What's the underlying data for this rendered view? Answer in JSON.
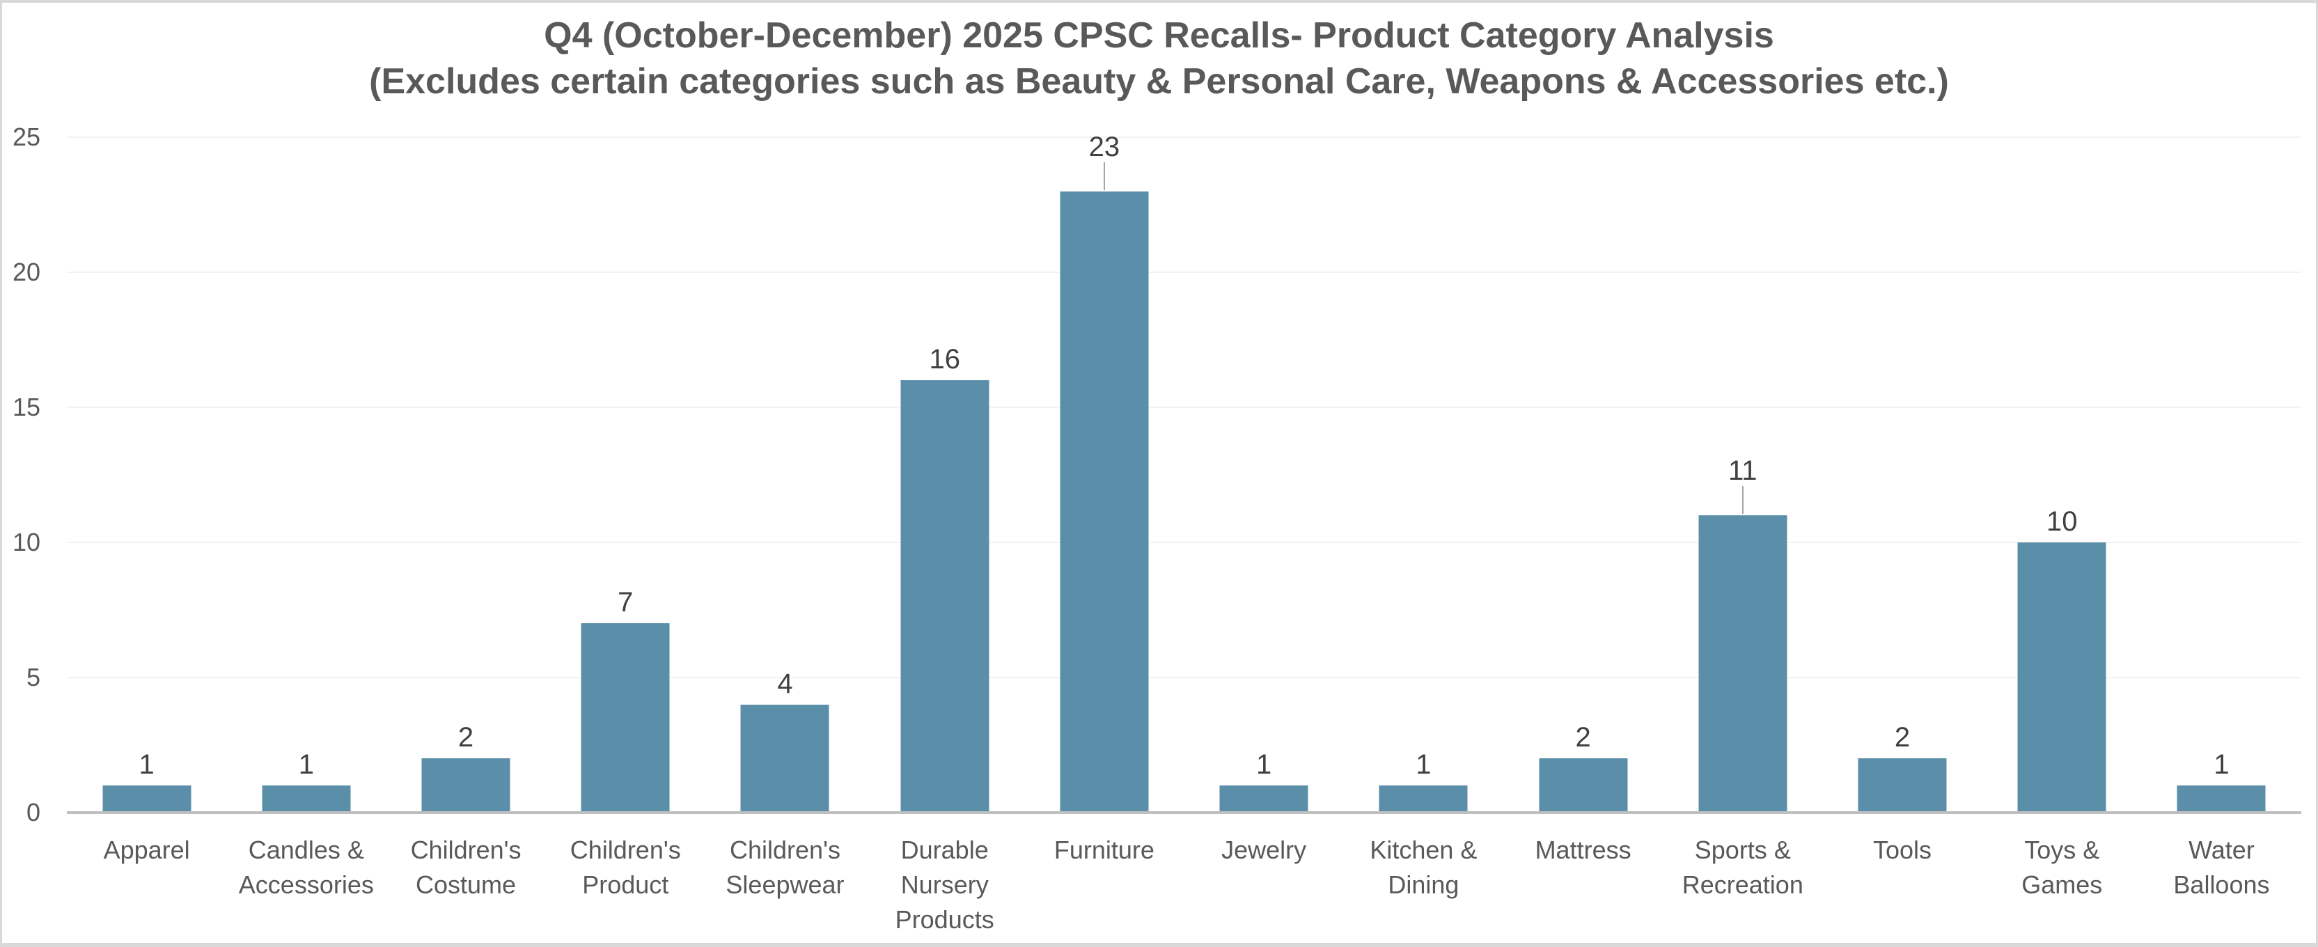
{
  "chart_data": {
    "type": "bar",
    "title": "Q4 (October-December) 2025 CPSC Recalls- Product Category Analysis",
    "subtitle": "(Excludes certain categories such as Beauty & Personal Care, Weapons & Accessories etc.)",
    "categories": [
      "Apparel",
      "Candles & Accessories",
      "Children's Costume",
      "Children's Product",
      "Children's Sleepwear",
      "Durable Nursery Products",
      "Furniture",
      "Jewelry",
      "Kitchen & Dining",
      "Mattress",
      "Sports & Recreation",
      "Tools",
      "Toys & Games",
      "Water Balloons"
    ],
    "values": [
      1,
      1,
      2,
      7,
      4,
      16,
      23,
      1,
      1,
      2,
      11,
      2,
      10,
      1
    ],
    "xlabel": "",
    "ylabel": "",
    "ylim": [
      0,
      25
    ],
    "yticks": [
      0,
      5,
      10,
      15,
      20,
      25
    ],
    "gridlines": "horizontal",
    "legend_position": "none",
    "data_labels_visible": true,
    "labels_with_leader_lines": [
      "Furniture",
      "Sports & Recreation"
    ]
  },
  "colors": {
    "background": "#FFFFFF",
    "bar_fill": "#5B8FA9",
    "title_text": "#595959",
    "axis_text": "#595959",
    "data_label_text": "#404040",
    "gridline": "#F2F2F2",
    "axis_line": "#BFBFBF",
    "leader_line": "#A6A6A6",
    "frame_border": "#D9D9D9"
  }
}
